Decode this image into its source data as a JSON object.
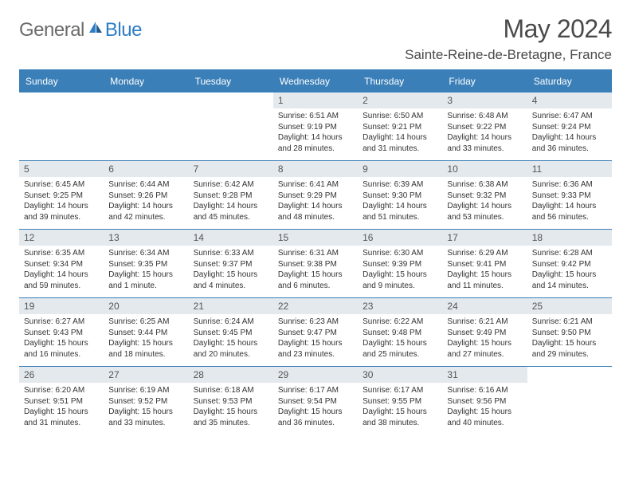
{
  "logo": {
    "word1": "General",
    "word2": "Blue"
  },
  "title": "May 2024",
  "location": "Sainte-Reine-de-Bretagne, France",
  "colors": {
    "header_bar": "#3b7fb8",
    "daynum_bg": "#e4e9ee",
    "text": "#333333",
    "title_text": "#4a4a4a",
    "logo_gray": "#6b6b6b",
    "logo_blue": "#2d7dc8"
  },
  "day_headers": [
    "Sunday",
    "Monday",
    "Tuesday",
    "Wednesday",
    "Thursday",
    "Friday",
    "Saturday"
  ],
  "weeks": [
    [
      {
        "n": "",
        "sr": "",
        "ss": "",
        "dl": ""
      },
      {
        "n": "",
        "sr": "",
        "ss": "",
        "dl": ""
      },
      {
        "n": "",
        "sr": "",
        "ss": "",
        "dl": ""
      },
      {
        "n": "1",
        "sr": "6:51 AM",
        "ss": "9:19 PM",
        "dl": "14 hours and 28 minutes."
      },
      {
        "n": "2",
        "sr": "6:50 AM",
        "ss": "9:21 PM",
        "dl": "14 hours and 31 minutes."
      },
      {
        "n": "3",
        "sr": "6:48 AM",
        "ss": "9:22 PM",
        "dl": "14 hours and 33 minutes."
      },
      {
        "n": "4",
        "sr": "6:47 AM",
        "ss": "9:24 PM",
        "dl": "14 hours and 36 minutes."
      }
    ],
    [
      {
        "n": "5",
        "sr": "6:45 AM",
        "ss": "9:25 PM",
        "dl": "14 hours and 39 minutes."
      },
      {
        "n": "6",
        "sr": "6:44 AM",
        "ss": "9:26 PM",
        "dl": "14 hours and 42 minutes."
      },
      {
        "n": "7",
        "sr": "6:42 AM",
        "ss": "9:28 PM",
        "dl": "14 hours and 45 minutes."
      },
      {
        "n": "8",
        "sr": "6:41 AM",
        "ss": "9:29 PM",
        "dl": "14 hours and 48 minutes."
      },
      {
        "n": "9",
        "sr": "6:39 AM",
        "ss": "9:30 PM",
        "dl": "14 hours and 51 minutes."
      },
      {
        "n": "10",
        "sr": "6:38 AM",
        "ss": "9:32 PM",
        "dl": "14 hours and 53 minutes."
      },
      {
        "n": "11",
        "sr": "6:36 AM",
        "ss": "9:33 PM",
        "dl": "14 hours and 56 minutes."
      }
    ],
    [
      {
        "n": "12",
        "sr": "6:35 AM",
        "ss": "9:34 PM",
        "dl": "14 hours and 59 minutes."
      },
      {
        "n": "13",
        "sr": "6:34 AM",
        "ss": "9:35 PM",
        "dl": "15 hours and 1 minute."
      },
      {
        "n": "14",
        "sr": "6:33 AM",
        "ss": "9:37 PM",
        "dl": "15 hours and 4 minutes."
      },
      {
        "n": "15",
        "sr": "6:31 AM",
        "ss": "9:38 PM",
        "dl": "15 hours and 6 minutes."
      },
      {
        "n": "16",
        "sr": "6:30 AM",
        "ss": "9:39 PM",
        "dl": "15 hours and 9 minutes."
      },
      {
        "n": "17",
        "sr": "6:29 AM",
        "ss": "9:41 PM",
        "dl": "15 hours and 11 minutes."
      },
      {
        "n": "18",
        "sr": "6:28 AM",
        "ss": "9:42 PM",
        "dl": "15 hours and 14 minutes."
      }
    ],
    [
      {
        "n": "19",
        "sr": "6:27 AM",
        "ss": "9:43 PM",
        "dl": "15 hours and 16 minutes."
      },
      {
        "n": "20",
        "sr": "6:25 AM",
        "ss": "9:44 PM",
        "dl": "15 hours and 18 minutes."
      },
      {
        "n": "21",
        "sr": "6:24 AM",
        "ss": "9:45 PM",
        "dl": "15 hours and 20 minutes."
      },
      {
        "n": "22",
        "sr": "6:23 AM",
        "ss": "9:47 PM",
        "dl": "15 hours and 23 minutes."
      },
      {
        "n": "23",
        "sr": "6:22 AM",
        "ss": "9:48 PM",
        "dl": "15 hours and 25 minutes."
      },
      {
        "n": "24",
        "sr": "6:21 AM",
        "ss": "9:49 PM",
        "dl": "15 hours and 27 minutes."
      },
      {
        "n": "25",
        "sr": "6:21 AM",
        "ss": "9:50 PM",
        "dl": "15 hours and 29 minutes."
      }
    ],
    [
      {
        "n": "26",
        "sr": "6:20 AM",
        "ss": "9:51 PM",
        "dl": "15 hours and 31 minutes."
      },
      {
        "n": "27",
        "sr": "6:19 AM",
        "ss": "9:52 PM",
        "dl": "15 hours and 33 minutes."
      },
      {
        "n": "28",
        "sr": "6:18 AM",
        "ss": "9:53 PM",
        "dl": "15 hours and 35 minutes."
      },
      {
        "n": "29",
        "sr": "6:17 AM",
        "ss": "9:54 PM",
        "dl": "15 hours and 36 minutes."
      },
      {
        "n": "30",
        "sr": "6:17 AM",
        "ss": "9:55 PM",
        "dl": "15 hours and 38 minutes."
      },
      {
        "n": "31",
        "sr": "6:16 AM",
        "ss": "9:56 PM",
        "dl": "15 hours and 40 minutes."
      },
      {
        "n": "",
        "sr": "",
        "ss": "",
        "dl": ""
      }
    ]
  ],
  "labels": {
    "sunrise": "Sunrise:",
    "sunset": "Sunset:",
    "daylight": "Daylight:"
  }
}
